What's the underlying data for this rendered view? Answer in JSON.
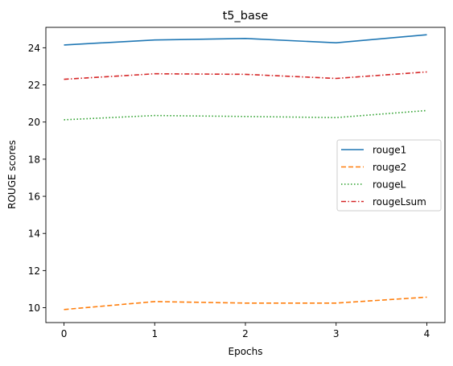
{
  "chart_data": {
    "type": "line",
    "title": "t5_base",
    "xlabel": "Epochs",
    "ylabel": "ROUGE scores",
    "x": [
      0,
      1,
      2,
      3,
      4
    ],
    "xticks": [
      "0",
      "1",
      "2",
      "3",
      "4"
    ],
    "yticks": [
      "10",
      "12",
      "14",
      "16",
      "18",
      "20",
      "22",
      "24"
    ],
    "xlim": [
      -0.2,
      4.2
    ],
    "ylim": [
      9.2,
      25.1
    ],
    "grid": false,
    "legend_position": "center-right",
    "series": [
      {
        "name": "rouge1",
        "values": [
          24.15,
          24.42,
          24.5,
          24.27,
          24.7
        ],
        "color": "#1f77b4",
        "style": "solid"
      },
      {
        "name": "rouge2",
        "values": [
          9.9,
          10.33,
          10.25,
          10.25,
          10.57
        ],
        "color": "#ff7f0e",
        "style": "dashed"
      },
      {
        "name": "rougeL",
        "values": [
          20.12,
          20.35,
          20.3,
          20.24,
          20.62
        ],
        "color": "#2ca02c",
        "style": "dotted"
      },
      {
        "name": "rougeLsum",
        "values": [
          22.3,
          22.6,
          22.57,
          22.35,
          22.7
        ],
        "color": "#d62728",
        "style": "dashdot"
      }
    ]
  }
}
